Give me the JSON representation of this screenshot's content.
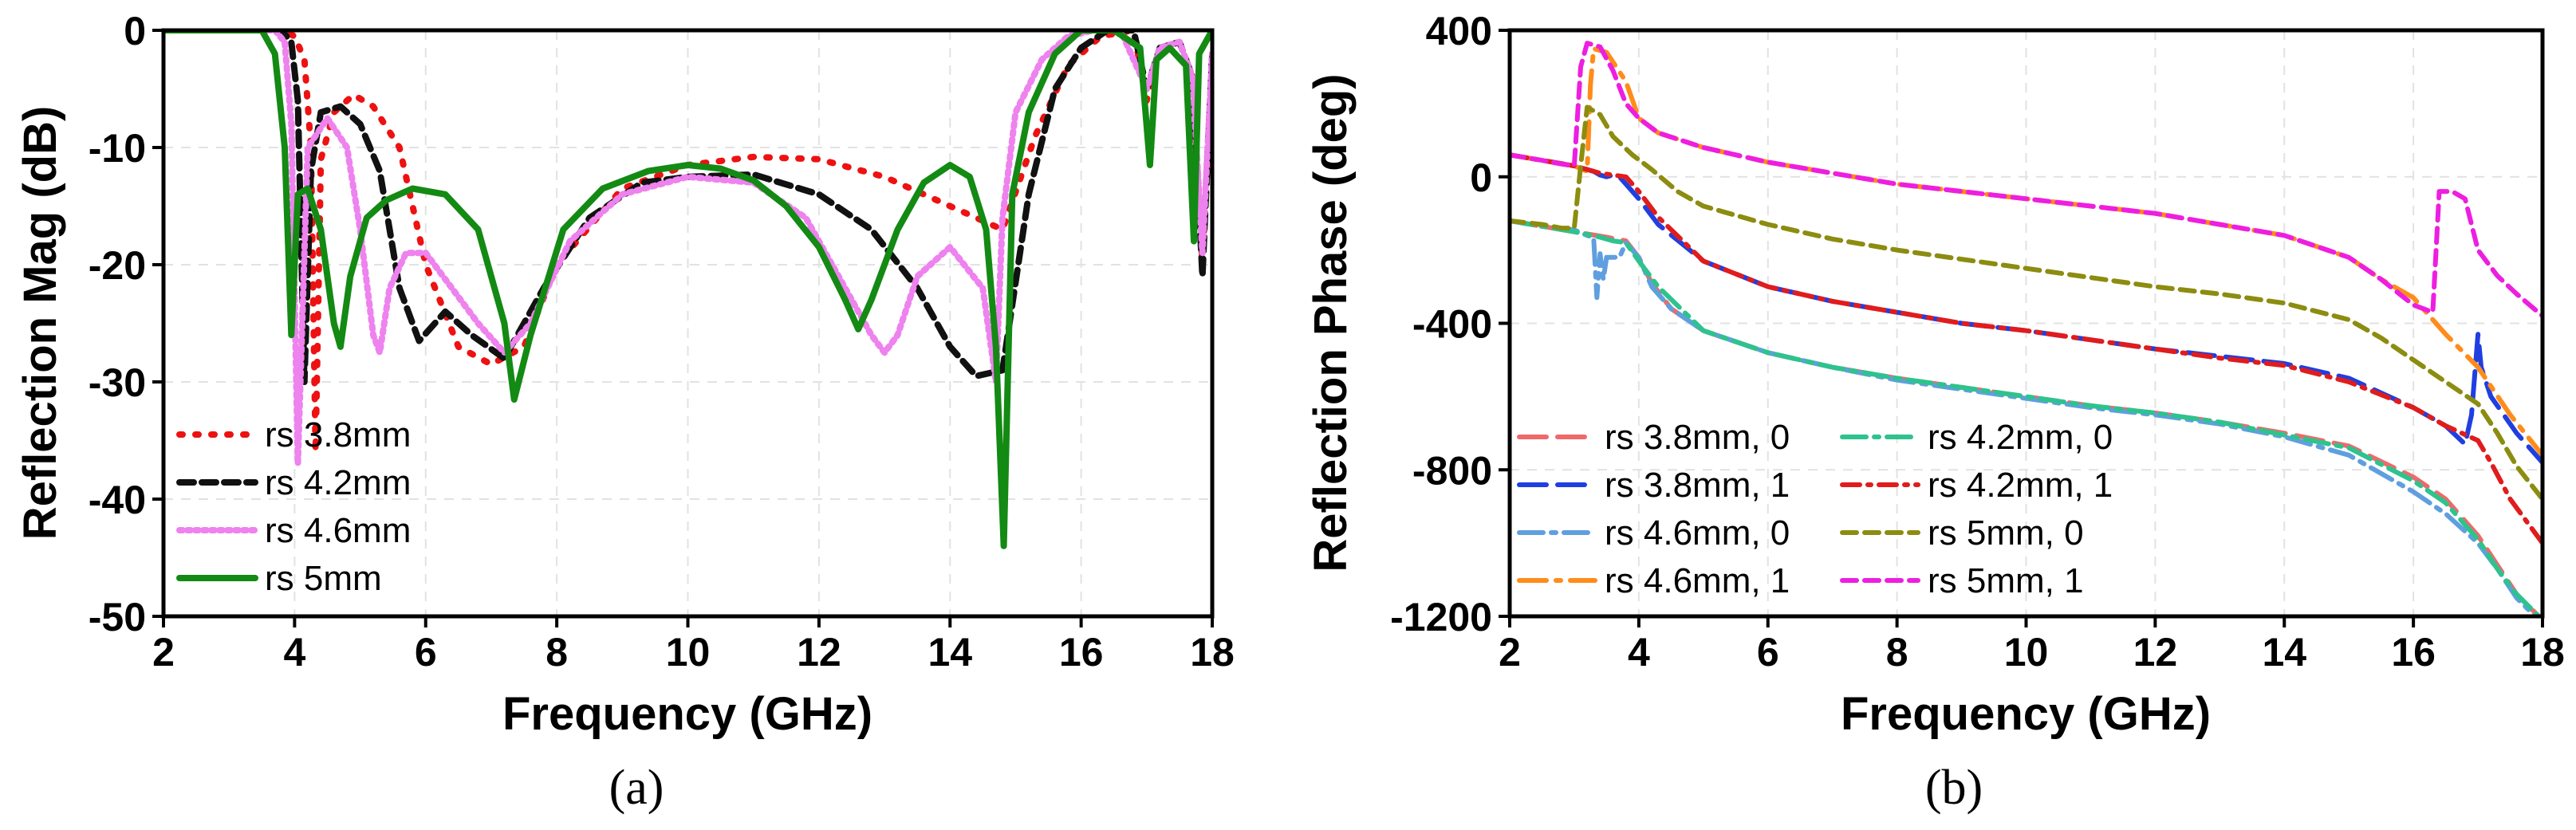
{
  "chart_data": [
    {
      "type": "line",
      "caption": "(a)",
      "xlabel": "Frequency (GHz)",
      "ylabel": "Reflection Mag (dB)",
      "xlim": [
        2,
        18
      ],
      "ylim": [
        -50,
        0
      ],
      "xticks": [
        "2",
        "4",
        "6",
        "8",
        "10",
        "12",
        "14",
        "16",
        "18"
      ],
      "yticks": [
        "0",
        "-10",
        "-20",
        "-30",
        "-40",
        "-50"
      ],
      "legend_position": "bottom-left",
      "series": [
        {
          "name": "rs 3.8mm",
          "color": "#ee1111",
          "dash": "dot",
          "x": [
            2,
            3.8,
            4.0,
            4.15,
            4.25,
            4.32,
            4.4,
            4.6,
            4.9,
            5.2,
            5.6,
            6.0,
            6.5,
            7.0,
            7.5,
            8.0,
            9.0,
            10.0,
            11.0,
            12.0,
            13.0,
            14.0,
            14.8,
            15.3,
            15.8,
            16.3,
            16.8,
            17.0,
            17.2,
            17.5,
            17.7,
            17.85,
            18.0
          ],
          "y": [
            0,
            0,
            -0.5,
            -2.5,
            -10,
            -36,
            -11,
            -7,
            -5.5,
            -6.5,
            -10,
            -20,
            -27,
            -28.5,
            -27,
            -20,
            -13.5,
            -11.5,
            -10.8,
            -11,
            -12.5,
            -15,
            -17,
            -9,
            -3,
            -0.5,
            0,
            -6,
            -1.5,
            -1,
            -4,
            -20,
            -2
          ]
        },
        {
          "name": "rs 4.2mm",
          "color": "#111111",
          "dash": "dash",
          "x": [
            2,
            3.8,
            3.95,
            4.05,
            4.15,
            4.25,
            4.4,
            4.7,
            5.0,
            5.3,
            5.6,
            5.9,
            6.3,
            6.7,
            7.2,
            7.8,
            8.5,
            9.3,
            10.0,
            11.0,
            12.0,
            12.8,
            13.5,
            14.0,
            14.4,
            14.8,
            15.2,
            15.6,
            16.0,
            16.4,
            16.8,
            17.0,
            17.2,
            17.5,
            17.7,
            17.85,
            18.0
          ],
          "y": [
            0,
            0,
            -1,
            -6,
            -30,
            -12,
            -7,
            -6.5,
            -8,
            -12,
            -22,
            -26.5,
            -24,
            -26,
            -28,
            -22,
            -16,
            -13,
            -12.5,
            -12.3,
            -14,
            -17,
            -22,
            -27,
            -29.5,
            -29,
            -14,
            -5,
            -1.5,
            0,
            0,
            -5,
            -1.5,
            -1,
            -4,
            -21,
            -2
          ]
        },
        {
          "name": "rs 4.6mm",
          "color": "#ee82ee",
          "dash": "dotted-fine",
          "x": [
            2,
            3.7,
            3.85,
            3.95,
            4.05,
            4.2,
            4.5,
            4.8,
            5.0,
            5.2,
            5.3,
            5.45,
            5.7,
            6.0,
            6.4,
            6.8,
            7.2,
            7.6,
            8.2,
            9.0,
            10.0,
            11.0,
            11.8,
            12.4,
            12.8,
            13.0,
            13.2,
            13.5,
            14.0,
            14.5,
            14.7,
            14.8,
            15.0,
            15.4,
            15.8,
            16.2,
            16.6,
            17.0,
            17.2,
            17.5,
            17.7,
            17.85,
            18.0
          ],
          "y": [
            0,
            0,
            -1,
            -8,
            -37,
            -10,
            -7.5,
            -10,
            -17,
            -26,
            -27.5,
            -22,
            -19,
            -19,
            -22,
            -25,
            -27.5,
            -25,
            -18,
            -14,
            -12.5,
            -13,
            -16,
            -22,
            -26,
            -27.5,
            -26,
            -21,
            -18.5,
            -22,
            -30,
            -16,
            -7,
            -2.5,
            -0.5,
            0,
            0,
            -5,
            -1.5,
            -1,
            -4,
            -19,
            -2
          ]
        },
        {
          "name": "rs 5mm",
          "color": "#138a13",
          "dash": "solid",
          "x": [
            2,
            3.5,
            3.7,
            3.85,
            3.95,
            4.05,
            4.2,
            4.4,
            4.6,
            4.7,
            4.85,
            5.1,
            5.4,
            5.8,
            6.3,
            6.8,
            7.2,
            7.35,
            7.6,
            8.1,
            8.7,
            9.4,
            10.0,
            10.5,
            11.0,
            11.5,
            12.0,
            12.4,
            12.6,
            12.8,
            13.2,
            13.6,
            14.0,
            14.3,
            14.55,
            14.7,
            14.82,
            14.95,
            15.2,
            15.6,
            16.0,
            16.5,
            16.9,
            17.05,
            17.15,
            17.35,
            17.6,
            17.72,
            17.8,
            17.9,
            18.0
          ],
          "y": [
            0,
            0,
            -2,
            -10,
            -26,
            -14,
            -13.5,
            -17,
            -25,
            -27,
            -21,
            -16,
            -14.5,
            -13.5,
            -14,
            -17,
            -25,
            -31.5,
            -26,
            -17,
            -13.5,
            -12,
            -11.5,
            -11.8,
            -12.8,
            -15,
            -18.5,
            -23,
            -25.5,
            -23,
            -17,
            -13,
            -11.5,
            -12.5,
            -17,
            -27,
            -44,
            -14,
            -7,
            -2,
            0,
            0,
            -1.5,
            -11.5,
            -2.5,
            -1.5,
            -3,
            -18,
            -2,
            -1,
            0
          ]
        }
      ]
    },
    {
      "type": "line",
      "caption": "(b)",
      "xlabel": "Frequency (GHz)",
      "ylabel": "Reflection Phase (deg)",
      "xlim": [
        2,
        18
      ],
      "ylim": [
        -1200,
        400
      ],
      "xticks": [
        "2",
        "4",
        "6",
        "8",
        "10",
        "12",
        "14",
        "16",
        "18"
      ],
      "yticks": [
        "400",
        "0",
        "-400",
        "-800",
        "-1200"
      ],
      "legend_position": "bottom-left",
      "series": [
        {
          "name": "rs 3.8mm, 0",
          "color": "#ee6a6a",
          "dash": "longdash",
          "x": [
            2,
            2.5,
            3.0,
            3.5,
            3.8,
            4.0,
            4.2,
            4.5,
            5,
            6,
            7,
            8,
            9,
            10,
            11,
            12,
            13,
            14,
            15,
            16,
            16.5,
            17,
            17.3,
            17.6,
            18.0
          ],
          "y": [
            -120,
            -135,
            -150,
            -165,
            -175,
            -220,
            -290,
            -360,
            -420,
            -480,
            -520,
            -550,
            -575,
            -600,
            -625,
            -645,
            -670,
            -700,
            -735,
            -820,
            -880,
            -980,
            -1060,
            -1140,
            -1210
          ]
        },
        {
          "name": "rs 3.8mm, 1",
          "color": "#1f3fe0",
          "dash": "longdash",
          "x": [
            2,
            2.5,
            3.0,
            3.3,
            3.4,
            3.5,
            3.6,
            3.7,
            3.8,
            4.0,
            4.3,
            5,
            6,
            7,
            8,
            9,
            10,
            11,
            12,
            13,
            14,
            15,
            15.5,
            16,
            16.5,
            16.8,
            16.9,
            17.0,
            17.05,
            17.2,
            17.6,
            18.0
          ],
          "y": [
            60,
            45,
            30,
            15,
            5,
            0,
            5,
            0,
            -20,
            -60,
            -130,
            -230,
            -300,
            -340,
            -370,
            -400,
            -420,
            -445,
            -470,
            -490,
            -510,
            -550,
            -590,
            -630,
            -680,
            -730,
            -650,
            -430,
            -520,
            -600,
            -700,
            -780
          ]
        },
        {
          "name": "rs 4.6mm, 0",
          "color": "#5f9fdf",
          "dash": "dashdot",
          "x": [
            2,
            2.5,
            3.0,
            3.2,
            3.3,
            3.35,
            3.4,
            3.45,
            3.5,
            3.7,
            3.8,
            4.0,
            4.2,
            4.5,
            5,
            6,
            7,
            8,
            9,
            10,
            11,
            12,
            13,
            14,
            15,
            16,
            16.5,
            17,
            17.3,
            17.6,
            18.0
          ],
          "y": [
            -120,
            -135,
            -145,
            -160,
            -165,
            -330,
            -210,
            -280,
            -220,
            -220,
            -180,
            -220,
            -300,
            -360,
            -420,
            -480,
            -520,
            -555,
            -580,
            -605,
            -630,
            -650,
            -675,
            -710,
            -760,
            -860,
            -920,
            -1000,
            -1070,
            -1150,
            -1220
          ]
        },
        {
          "name": "rs 4.6mm, 1",
          "color": "#ff8c1a",
          "dash": "longdash-short",
          "x": [
            2,
            2.5,
            3.0,
            3.2,
            3.25,
            3.3,
            3.5,
            3.8,
            4.0,
            4.3,
            5,
            6,
            7,
            8,
            9,
            10,
            11,
            12,
            13,
            14,
            15,
            15.5,
            16,
            16.5,
            17,
            17.5,
            18.0
          ],
          "y": [
            60,
            45,
            30,
            15,
            250,
            350,
            340,
            260,
            160,
            120,
            80,
            40,
            10,
            -20,
            -40,
            -60,
            -80,
            -100,
            -130,
            -160,
            -220,
            -280,
            -330,
            -430,
            -520,
            -650,
            -760
          ]
        },
        {
          "name": "rs 4.2mm, 0",
          "color": "#2ec38e",
          "dash": "dashdot",
          "x": [
            2,
            2.5,
            3.0,
            3.4,
            3.6,
            3.8,
            4.0,
            4.3,
            5,
            6,
            7,
            8,
            9,
            10,
            11,
            12,
            13,
            14,
            15,
            16,
            16.5,
            17,
            17.3,
            17.6,
            18.0
          ],
          "y": [
            -120,
            -135,
            -150,
            -165,
            -175,
            -180,
            -230,
            -300,
            -420,
            -480,
            -520,
            -550,
            -575,
            -600,
            -625,
            -645,
            -670,
            -705,
            -740,
            -830,
            -890,
            -990,
            -1070,
            -1140,
            -1210
          ]
        },
        {
          "name": "rs 4.2mm, 1",
          "color": "#e01c1c",
          "dash": "dashdot-dense",
          "x": [
            2,
            2.5,
            3.0,
            3.4,
            3.6,
            3.8,
            4.0,
            4.3,
            5,
            6,
            7,
            8,
            9,
            10,
            11,
            12,
            13,
            14,
            15,
            16,
            16.5,
            17,
            17.2,
            17.5,
            18.0
          ],
          "y": [
            60,
            45,
            30,
            10,
            5,
            0,
            -40,
            -110,
            -230,
            -300,
            -340,
            -370,
            -400,
            -420,
            -445,
            -470,
            -495,
            -515,
            -560,
            -630,
            -680,
            -720,
            -780,
            -880,
            -1000
          ]
        },
        {
          "name": "rs 5mm, 0",
          "color": "#8c8c10",
          "dash": "dash",
          "x": [
            2,
            2.5,
            2.8,
            3.0,
            3.1,
            3.2,
            3.4,
            3.6,
            3.9,
            4.2,
            4.6,
            5,
            6,
            7,
            8,
            9,
            10,
            11,
            12,
            13,
            14,
            15,
            15.5,
            16,
            16.5,
            17,
            17.3,
            17.6,
            18.0
          ],
          "y": [
            -120,
            -130,
            -140,
            -140,
            30,
            190,
            170,
            110,
            60,
            20,
            -40,
            -80,
            -130,
            -170,
            -200,
            -225,
            -250,
            -275,
            -300,
            -320,
            -345,
            -390,
            -440,
            -500,
            -560,
            -620,
            -700,
            -790,
            -880
          ]
        },
        {
          "name": "rs 5mm, 1",
          "color": "#ee1ee0",
          "dash": "dash",
          "x": [
            2,
            2.5,
            2.8,
            3.0,
            3.1,
            3.2,
            3.4,
            3.6,
            3.8,
            4.0,
            4.3,
            5,
            6,
            7,
            8,
            9,
            10,
            11,
            12,
            13,
            14,
            15,
            15.5,
            16,
            16.3,
            16.4,
            16.6,
            16.8,
            17.0,
            17.3,
            17.6,
            18.0
          ],
          "y": [
            60,
            45,
            35,
            30,
            300,
            365,
            355,
            290,
            200,
            160,
            120,
            80,
            40,
            10,
            -20,
            -40,
            -60,
            -80,
            -100,
            -130,
            -160,
            -220,
            -280,
            -350,
            -370,
            -40,
            -40,
            -60,
            -200,
            -270,
            -320,
            -380
          ]
        }
      ]
    }
  ]
}
